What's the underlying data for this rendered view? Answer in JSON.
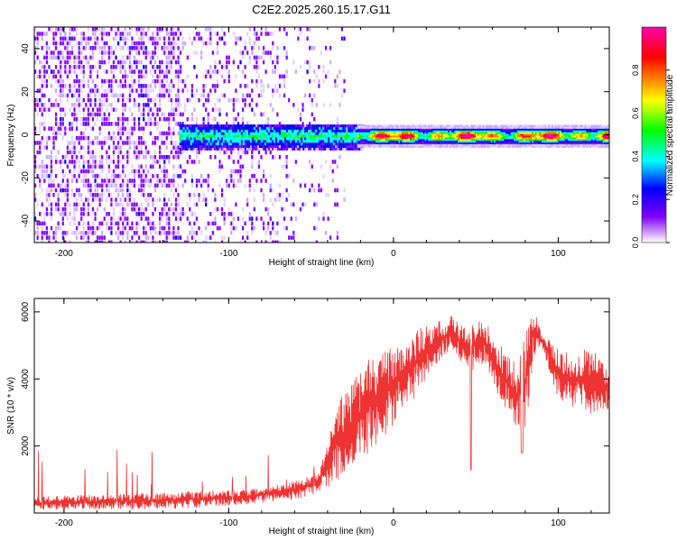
{
  "title": "C2E2.2025.260.15.17.G11",
  "chart_data": [
    {
      "type": "heatmap",
      "xlabel": "Height of straight line (km)",
      "ylabel": "Frequency (Hz)",
      "xlim": [
        -218,
        131
      ],
      "ylim": [
        -50,
        50
      ],
      "xticks": [
        -200,
        -100,
        0,
        100
      ],
      "yticks": [
        -40,
        -20,
        0,
        20,
        40
      ],
      "colorbar": {
        "label": "Normalized spectral amplitude",
        "range": [
          0,
          1
        ],
        "ticks": [
          "0.0",
          "0.2",
          "0.4",
          "0.6",
          "0.8"
        ],
        "colors": [
          "#ffffff",
          "#7f00ff",
          "#0000ff",
          "#00ffff",
          "#00ff00",
          "#ffff00",
          "#ff7f00",
          "#ff0000",
          "#ff00aa"
        ]
      },
      "regions": [
        {
          "x": [
            -218,
            -130
          ],
          "description": "scattered noise across all frequencies",
          "amplitude": 0.15
        },
        {
          "x": [
            -130,
            -30
          ],
          "center_hz": 0,
          "halfwidth_hz": 6,
          "amplitude": 0.35
        },
        {
          "x": [
            -20,
            131
          ],
          "center_hz": 0,
          "halfwidth_hz": 3,
          "amplitude": 0.85
        }
      ]
    },
    {
      "type": "line",
      "xlabel": "Height of straight line (km)",
      "ylabel": "SNR (10 * v/v)",
      "xlim": [
        -218,
        131
      ],
      "ylim": [
        0,
        6400
      ],
      "xticks": [
        -200,
        -100,
        0,
        100
      ],
      "yticks": [
        2000,
        4000,
        6000
      ],
      "color": "#ee3333",
      "envelope": {
        "x": [
          -218,
          -180,
          -150,
          -120,
          -90,
          -60,
          -45,
          -35,
          -25,
          -15,
          -5,
          5,
          15,
          25,
          35,
          45,
          55,
          65,
          75,
          80,
          85,
          90,
          100,
          110,
          120,
          131
        ],
        "lower": [
          80,
          100,
          100,
          150,
          250,
          400,
          600,
          900,
          1200,
          1800,
          2300,
          3000,
          3500,
          4300,
          4800,
          4200,
          4400,
          3300,
          2500,
          2400,
          4500,
          4900,
          3400,
          3100,
          2900,
          3100
        ],
        "upper": [
          500,
          550,
          600,
          650,
          700,
          950,
          1200,
          3200,
          4000,
          4600,
          4900,
          5000,
          5500,
          5700,
          5900,
          5500,
          5900,
          5000,
          4400,
          5300,
          6200,
          5400,
          4900,
          4700,
          5000,
          4200
        ]
      }
    }
  ]
}
